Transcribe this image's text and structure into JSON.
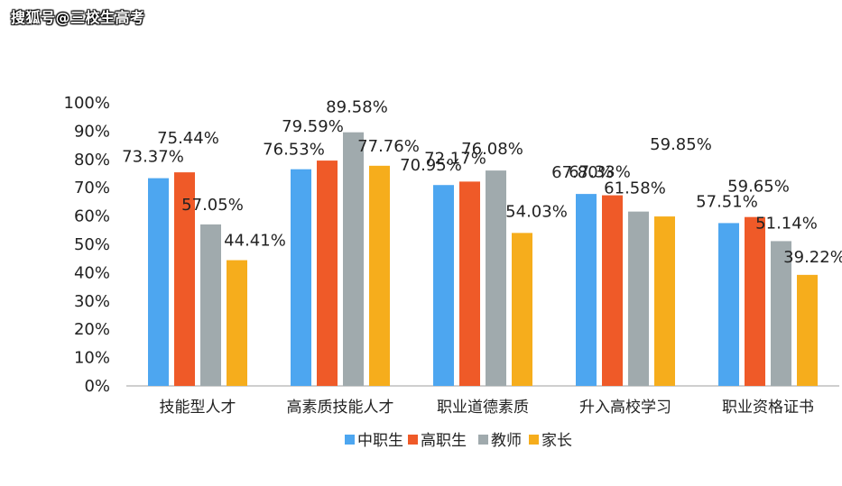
{
  "watermark": "搜狐号@三校生高考",
  "chart_data": {
    "type": "bar",
    "categories": [
      "技能型人才",
      "高素质技能人才",
      "职业道德素质",
      "升入高校学习",
      "职业资格证书"
    ],
    "series": [
      {
        "name": "中职生",
        "color": "#4da6f0",
        "values": [
          73.37,
          76.53,
          70.95,
          67.8,
          57.51
        ]
      },
      {
        "name": "高职生",
        "color": "#ef5a28",
        "values": [
          75.44,
          79.59,
          72.17,
          67.33,
          59.65
        ]
      },
      {
        "name": "教师",
        "color": "#a0aaad",
        "values": [
          57.05,
          89.58,
          76.08,
          61.58,
          51.14
        ]
      },
      {
        "name": "家长",
        "color": "#f6ad1c",
        "values": [
          44.41,
          77.76,
          54.03,
          59.85,
          39.22
        ]
      }
    ],
    "data_labels": [
      [
        "73.37%",
        "76.53%",
        "70.95%",
        "67.80%",
        "57.51%"
      ],
      [
        "75.44%",
        "79.59%",
        "72.17%",
        "67.33%",
        "59.65%"
      ],
      [
        "57.05%",
        "89.58%",
        "76.08%",
        "61.58%",
        "51.14%"
      ],
      [
        "44.41%",
        "77.76%",
        "54.03%",
        "59.85%",
        "39.22%"
      ]
    ],
    "y_ticks": [
      "0%",
      "10%",
      "20%",
      "30%",
      "40%",
      "50%",
      "60%",
      "70%",
      "80%",
      "90%",
      "100%"
    ],
    "ylim": [
      0,
      100
    ],
    "grid": false,
    "legend": "bottom"
  }
}
